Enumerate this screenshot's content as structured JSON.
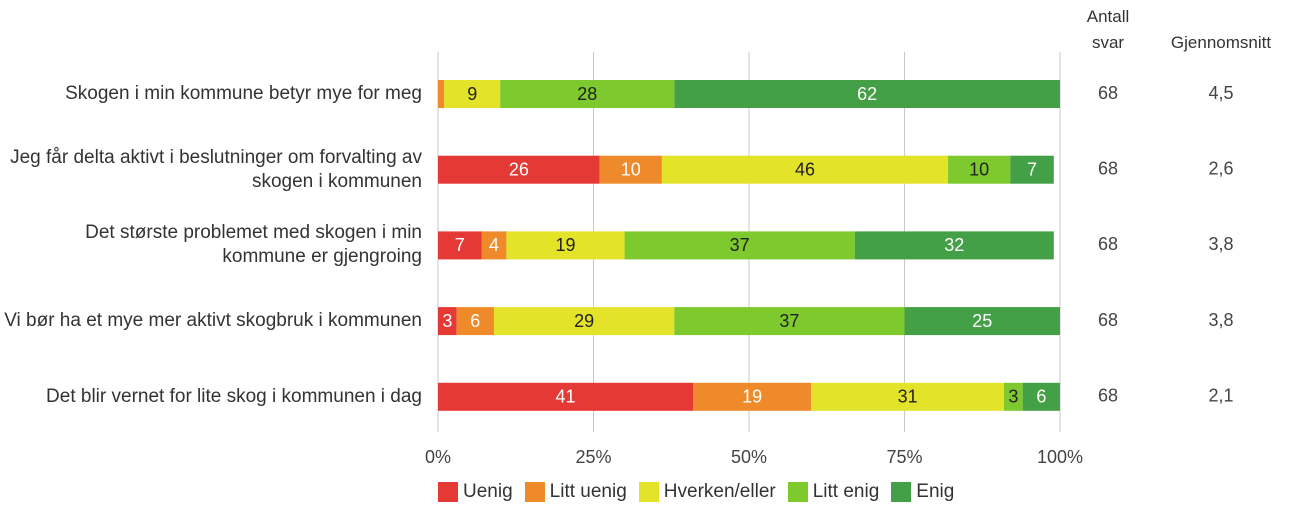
{
  "chart_data": {
    "type": "stacked-bar-horizontal",
    "categories": [
      "Skogen i min kommune betyr mye for meg",
      "Jeg får delta aktivt i beslutninger om forvalting av skogen i kommunen",
      "Det største problemet med skogen i min kommune er gjengroing",
      "Vi bør ha et mye mer aktivt skogbruk i kommunen",
      "Det blir vernet for lite skog i kommunen i dag"
    ],
    "series": [
      {
        "name": "Uenig",
        "color": "#e53935",
        "values": [
          0,
          26,
          7,
          3,
          41
        ],
        "value_labels": [
          null,
          "26",
          "7",
          "3",
          "41"
        ]
      },
      {
        "name": "Litt uenig",
        "color": "#ef8a2a",
        "values": [
          1,
          10,
          4,
          6,
          19
        ],
        "value_labels": [
          null,
          "10",
          "4",
          "6",
          "19"
        ]
      },
      {
        "name": "Hverken/eller",
        "color": "#e3e32a",
        "values": [
          9,
          46,
          19,
          29,
          31
        ]
      },
      {
        "name": "Litt enig",
        "color": "#7dc92e",
        "values": [
          28,
          10,
          37,
          37,
          3
        ]
      },
      {
        "name": "Enig",
        "color": "#43a047",
        "values": [
          62,
          7,
          32,
          25,
          6
        ]
      }
    ],
    "xlim": [
      0,
      100
    ],
    "xticks": [
      {
        "value": 0,
        "label": "0%"
      },
      {
        "value": 25,
        "label": "25%"
      },
      {
        "value": 50,
        "label": "50%"
      },
      {
        "value": 75,
        "label": "75%"
      },
      {
        "value": 100,
        "label": "100%"
      }
    ],
    "grid": true,
    "legend": "bottom",
    "count_header": "Antall svar",
    "counts": [
      68,
      68,
      68,
      68,
      68
    ],
    "average_header": "Gjennomsnitt",
    "averages": [
      "4,5",
      "2,6",
      "3,8",
      "3,8",
      "2,1"
    ]
  }
}
